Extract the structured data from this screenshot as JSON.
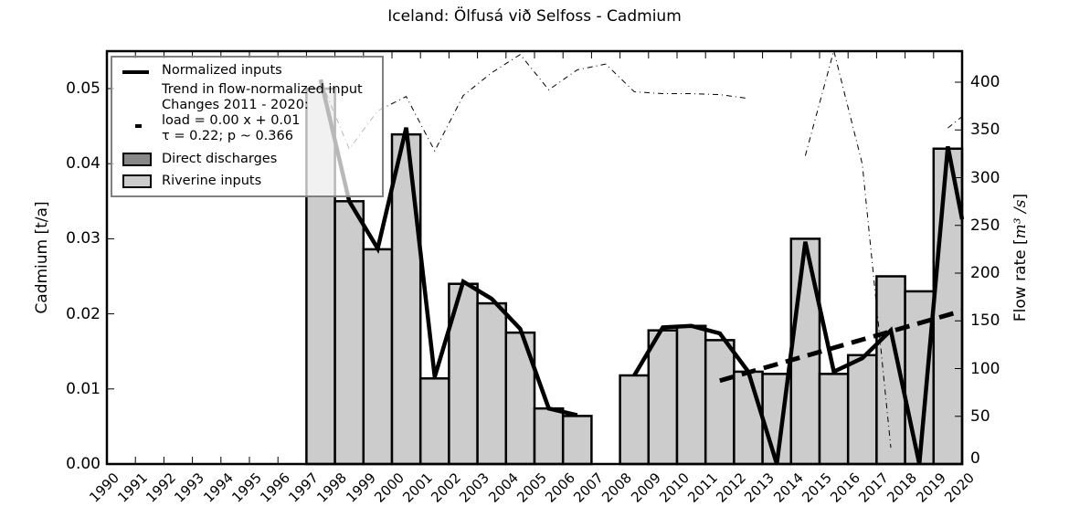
{
  "title": "Iceland: Ölfusá við Selfoss - Cadmium",
  "axes": {
    "left_label": "Cadmium [t/a]",
    "right_label_prefix": "Flow rate [",
    "right_label_unit": "m³ /s",
    "right_label_suffix": "]",
    "left_ticks": [
      "0.00",
      "0.01",
      "0.02",
      "0.03",
      "0.04",
      "0.05"
    ],
    "right_ticks": [
      "0",
      "50",
      "100",
      "150",
      "200",
      "250",
      "300",
      "350",
      "400"
    ]
  },
  "legend": {
    "normalized": "Normalized inputs",
    "trend_line1": "Trend in flow-normalized input",
    "trend_line2": "Changes 2011 - 2020:",
    "trend_line3": "load =  0.00 x +  0.01",
    "trend_line4": "τ =  0.22; p ~ 0.366",
    "direct": "Direct discharges",
    "riverine": "Riverine inputs"
  },
  "colors": {
    "riverine": "#cccccc",
    "direct": "#888888",
    "line": "#000000",
    "legend_border": "#808080"
  },
  "chart_data": {
    "type": "bar",
    "title": "Iceland: Ölfusá við Selfoss - Cadmium",
    "xlabel": "",
    "ylabel": "Cadmium [t/a]",
    "y2label": "Flow rate [m3/s]",
    "ylim": [
      0,
      0.055
    ],
    "y2lim": [
      0,
      430
    ],
    "legend_position": "upper left",
    "grid": false,
    "categories": [
      "1990",
      "1991",
      "1992",
      "1993",
      "1994",
      "1995",
      "1996",
      "1997",
      "1998",
      "1999",
      "2000",
      "2001",
      "2002",
      "2003",
      "2004",
      "2005",
      "2006",
      "2007",
      "2008",
      "2009",
      "2010",
      "2011",
      "2012",
      "2013",
      "2014",
      "2015",
      "2016",
      "2017",
      "2018",
      "2019",
      "2020"
    ],
    "series": [
      {
        "name": "Riverine inputs",
        "type": "bar",
        "values": [
          null,
          null,
          null,
          null,
          null,
          null,
          null,
          0.05,
          0.035,
          0.0286,
          0.0439,
          0.0114,
          0.024,
          0.0214,
          0.0175,
          0.0074,
          0.0064,
          null,
          0.0118,
          0.0178,
          0.0184,
          0.0165,
          0.0123,
          0.012,
          0.03,
          0.012,
          0.0145,
          0.025,
          0.023,
          0.042,
          null
        ]
      },
      {
        "name": "Direct discharges",
        "type": "bar",
        "values": [
          null,
          null,
          null,
          null,
          null,
          null,
          null,
          0,
          0,
          0,
          0,
          0,
          0,
          0,
          0,
          0,
          0,
          null,
          0,
          0,
          0,
          0,
          0,
          0,
          0,
          0,
          0,
          0,
          0,
          0,
          null
        ]
      },
      {
        "name": "Normalized inputs",
        "type": "line",
        "values": [
          null,
          null,
          null,
          null,
          null,
          null,
          null,
          0.0512,
          0.035,
          0.0287,
          0.0448,
          0.0116,
          0.0243,
          0.022,
          0.018,
          0.0074,
          0.0065,
          null,
          0.0118,
          0.0182,
          0.0184,
          0.0174,
          0.0123,
          0.0,
          0.0296,
          0.0123,
          0.0141,
          0.0178,
          0.0,
          0.0423,
          0.0326
        ]
      },
      {
        "name": "Trend in flow-normalized input (2011-2020)",
        "type": "line",
        "style": "dashed",
        "x": [
          "2011",
          "2020"
        ],
        "values": [
          0.0111,
          0.0204
        ]
      },
      {
        "name": "Flow rate",
        "type": "line",
        "axis": "right",
        "style": "dashdot",
        "values": [
          null,
          null,
          null,
          null,
          null,
          null,
          null,
          402,
          330,
          370,
          385,
          328,
          386,
          410,
          429,
          392,
          413,
          419,
          390,
          388,
          388,
          387,
          383,
          null,
          323,
          433,
          314,
          17,
          null,
          352,
          364
        ]
      }
    ]
  }
}
